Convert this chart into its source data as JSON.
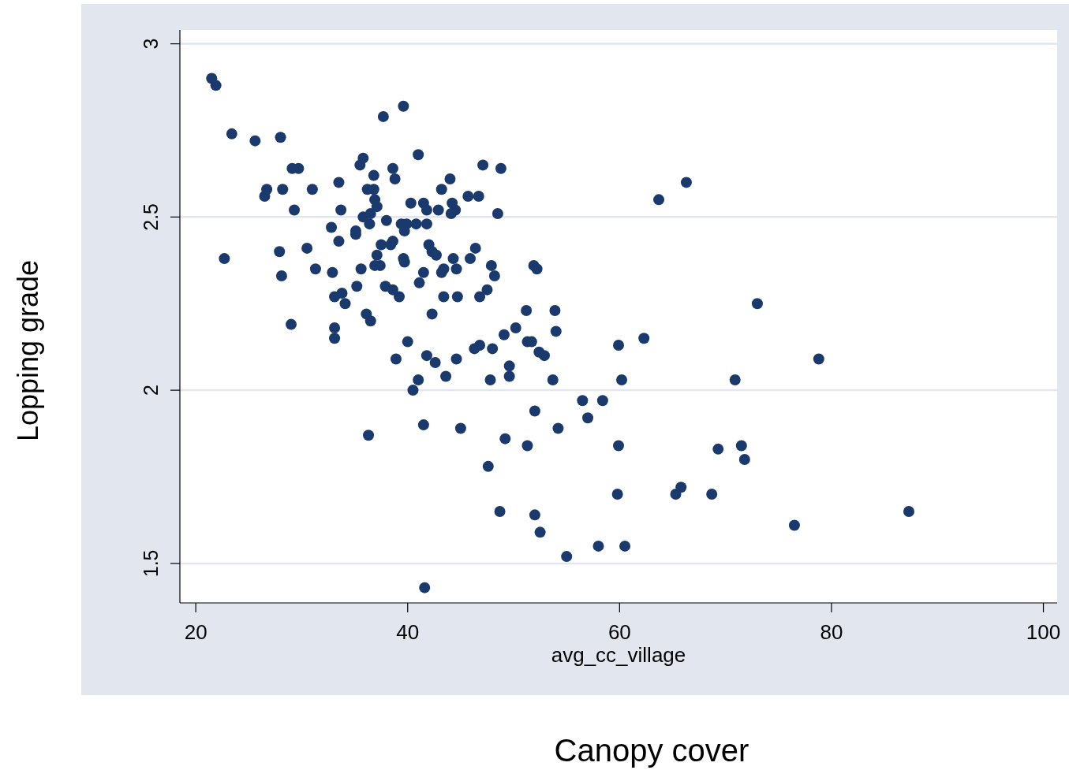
{
  "chart_data": {
    "type": "scatter",
    "xlabel": "avg_cc_village",
    "ylabel": "Lopping grade",
    "annotations": [
      "Canopy cover"
    ],
    "xlim": [
      18.5,
      101.3
    ],
    "ylim": [
      1.386,
      3.04
    ],
    "xticks": [
      20,
      40,
      60,
      80,
      100
    ],
    "yticks": [
      1.5,
      2,
      2.5,
      3
    ],
    "grid": "y",
    "marker": "circle",
    "series": [
      {
        "color": "#1a3a6e",
        "x": [
          21.5,
          21.9,
          23.4,
          22.7,
          25.6,
          28.0,
          26.5,
          26.7,
          28.2,
          29.1,
          29.7,
          29.3,
          31.0,
          27.9,
          28.1,
          29.0,
          30.5,
          31.3,
          32.8,
          33.5,
          33.7,
          33.5,
          32.9,
          33.1,
          33.8,
          34.1,
          33.1,
          33.1,
          35.1,
          35.1,
          35.5,
          35.8,
          35.6,
          35.2,
          35.8,
          36.2,
          36.8,
          36.5,
          36.8,
          36.9,
          37.1,
          36.4,
          36.1,
          36.5,
          36.3,
          37.1,
          36.9,
          37.4,
          37.5,
          38.0,
          37.7,
          38.6,
          38.8,
          38.6,
          38.4,
          37.9,
          38.6,
          39.2,
          38.9,
          39.6,
          39.4,
          39.9,
          39.7,
          39.6,
          39.7,
          40.0,
          40.3,
          40.8,
          41.0,
          41.5,
          41.8,
          41.8,
          41.1,
          41.5,
          42.0,
          42.3,
          42.7,
          42.9,
          41.8,
          42.3,
          42.6,
          41.0,
          40.5,
          41.5,
          41.6,
          43.2,
          44.0,
          44.2,
          44.5,
          44.1,
          43.2,
          43.4,
          44.3,
          44.6,
          43.4,
          44.7,
          43.6,
          44.6,
          45.0,
          45.7,
          46.7,
          47.1,
          46.4,
          45.9,
          46.8,
          47.5,
          47.9,
          48.2,
          46.3,
          46.8,
          48.0,
          47.8,
          47.6,
          48.5,
          48.8,
          49.1,
          49.6,
          49.6,
          50.2,
          49.2,
          48.7,
          51.2,
          51.3,
          51.7,
          51.9,
          52.2,
          52.4,
          52.9,
          52.0,
          51.3,
          52.0,
          52.5,
          53.9,
          54.0,
          53.7,
          54.2,
          55.0,
          56.5,
          58.4,
          57.0,
          58.0,
          59.9,
          60.2,
          59.9,
          59.8,
          60.5,
          62.3,
          63.7,
          66.3,
          65.3,
          65.8,
          68.7,
          69.3,
          70.9,
          71.5,
          71.8,
          73.0,
          76.5,
          78.8,
          87.3
        ],
        "values": [
          2.9,
          2.88,
          2.74,
          2.38,
          2.72,
          2.73,
          2.56,
          2.58,
          2.58,
          2.64,
          2.64,
          2.52,
          2.58,
          2.4,
          2.33,
          2.19,
          2.41,
          2.35,
          2.47,
          2.6,
          2.52,
          2.43,
          2.34,
          2.27,
          2.28,
          2.25,
          2.18,
          2.15,
          2.46,
          2.45,
          2.65,
          2.67,
          2.35,
          2.3,
          2.5,
          2.58,
          2.58,
          2.51,
          2.62,
          2.55,
          2.53,
          2.48,
          2.22,
          2.2,
          1.87,
          2.39,
          2.36,
          2.36,
          2.42,
          2.49,
          2.79,
          2.64,
          2.61,
          2.43,
          2.42,
          2.3,
          2.29,
          2.27,
          2.09,
          2.82,
          2.48,
          2.48,
          2.46,
          2.38,
          2.37,
          2.14,
          2.54,
          2.48,
          2.68,
          2.54,
          2.52,
          2.48,
          2.31,
          2.34,
          2.42,
          2.4,
          2.39,
          2.52,
          2.1,
          2.22,
          2.08,
          2.03,
          2.0,
          1.9,
          1.43,
          2.58,
          2.61,
          2.54,
          2.52,
          2.51,
          2.34,
          2.35,
          2.38,
          2.35,
          2.27,
          2.27,
          2.04,
          2.09,
          1.89,
          2.56,
          2.56,
          2.65,
          2.41,
          2.38,
          2.27,
          2.29,
          2.36,
          2.33,
          2.12,
          2.13,
          2.12,
          2.03,
          1.78,
          2.51,
          2.64,
          2.16,
          2.07,
          2.04,
          2.18,
          1.86,
          1.65,
          2.23,
          2.14,
          2.14,
          2.36,
          2.35,
          2.11,
          2.1,
          1.94,
          1.84,
          1.64,
          1.59,
          2.23,
          2.17,
          2.03,
          1.89,
          1.52,
          1.97,
          1.97,
          1.92,
          1.55,
          2.13,
          2.03,
          1.84,
          1.7,
          1.55,
          2.15,
          2.55,
          2.6,
          1.7,
          1.72,
          1.7,
          1.83,
          2.03,
          1.84,
          1.8,
          2.25,
          1.61,
          2.09,
          1.65
        ]
      }
    ]
  }
}
